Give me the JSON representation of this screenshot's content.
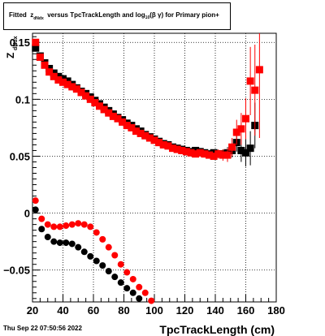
{
  "title": {
    "part1": "Fitted",
    "z": "z",
    "z_sub": "dNdx",
    "part2": "versus TpcTrackLength and log",
    "log_sub": "10",
    "part3": "(β  γ) for Primary pion+"
  },
  "date": "Thu Sep 22 07:50:56 2022",
  "chart_data": {
    "type": "scatter",
    "xlabel": "TpcTrackLength (cm)",
    "ylabel": "Z",
    "ylabel_sub": "dNdx",
    "xlim": [
      20,
      180
    ],
    "ylim": [
      -0.078,
      0.158
    ],
    "xticks": [
      20,
      40,
      60,
      80,
      100,
      120,
      140,
      160,
      180
    ],
    "yticks": [
      -0.05,
      0,
      0.05,
      0.1,
      0.15
    ],
    "ytick_labels": [
      "−0.05",
      "0",
      "0.05",
      "0.1",
      "0.15"
    ],
    "grid": true,
    "series": [
      {
        "color": "#000000",
        "marker": "square",
        "x": [
          22,
          25,
          28,
          31,
          34,
          37,
          40,
          43,
          46,
          49,
          52,
          55,
          58,
          61,
          64,
          67,
          70,
          73,
          76,
          79,
          82,
          85,
          88,
          91,
          94,
          97,
          100,
          103,
          106,
          109,
          112,
          115,
          118,
          121,
          124,
          127,
          130,
          133,
          136,
          139,
          142,
          145,
          148,
          151,
          154,
          157,
          160,
          163,
          166
        ],
        "y": [
          0.145,
          0.138,
          0.132,
          0.127,
          0.123,
          0.12,
          0.118,
          0.116,
          0.113,
          0.11,
          0.107,
          0.105,
          0.102,
          0.099,
          0.096,
          0.093,
          0.09,
          0.087,
          0.084,
          0.082,
          0.079,
          0.077,
          0.074,
          0.072,
          0.069,
          0.067,
          0.065,
          0.063,
          0.061,
          0.06,
          0.058,
          0.057,
          0.056,
          0.055,
          0.054,
          0.055,
          0.054,
          0.053,
          0.052,
          0.053,
          0.052,
          0.052,
          0.053,
          0.055,
          0.062,
          0.055,
          0.053,
          0.057,
          0.077
        ],
        "yerr": [
          0.002,
          0.002,
          0.002,
          0.002,
          0.002,
          0.002,
          0.002,
          0.002,
          0.002,
          0.002,
          0.002,
          0.002,
          0.002,
          0.002,
          0.002,
          0.002,
          0.002,
          0.002,
          0.002,
          0.002,
          0.002,
          0.002,
          0.002,
          0.002,
          0.002,
          0.002,
          0.002,
          0.002,
          0.002,
          0.002,
          0.002,
          0.002,
          0.002,
          0.002,
          0.002,
          0.002,
          0.002,
          0.002,
          0.002,
          0.003,
          0.003,
          0.004,
          0.005,
          0.006,
          0.008,
          0.01,
          0.012,
          0.015,
          0.02
        ]
      },
      {
        "color": "#ff0000",
        "marker": "square",
        "x": [
          22,
          25,
          28,
          31,
          34,
          37,
          40,
          43,
          46,
          49,
          52,
          55,
          58,
          61,
          64,
          67,
          70,
          73,
          76,
          79,
          82,
          85,
          88,
          91,
          94,
          97,
          100,
          103,
          106,
          109,
          112,
          115,
          118,
          121,
          124,
          127,
          130,
          133,
          136,
          139,
          142,
          145,
          148,
          151,
          154,
          157,
          160,
          163,
          166,
          169
        ],
        "y": [
          0.15,
          0.137,
          0.13,
          0.124,
          0.12,
          0.117,
          0.115,
          0.113,
          0.111,
          0.109,
          0.106,
          0.103,
          0.1,
          0.097,
          0.094,
          0.091,
          0.088,
          0.085,
          0.083,
          0.08,
          0.077,
          0.075,
          0.072,
          0.07,
          0.068,
          0.066,
          0.064,
          0.062,
          0.06,
          0.059,
          0.057,
          0.056,
          0.055,
          0.054,
          0.053,
          0.052,
          0.053,
          0.052,
          0.051,
          0.05,
          0.052,
          0.051,
          0.051,
          0.058,
          0.071,
          0.074,
          0.083,
          0.116,
          0.108,
          0.126
        ],
        "yerr": [
          0.002,
          0.002,
          0.002,
          0.002,
          0.002,
          0.002,
          0.002,
          0.002,
          0.002,
          0.002,
          0.002,
          0.002,
          0.002,
          0.002,
          0.002,
          0.002,
          0.002,
          0.002,
          0.002,
          0.002,
          0.002,
          0.002,
          0.002,
          0.002,
          0.002,
          0.002,
          0.002,
          0.002,
          0.002,
          0.002,
          0.002,
          0.002,
          0.002,
          0.002,
          0.002,
          0.002,
          0.002,
          0.002,
          0.002,
          0.003,
          0.004,
          0.005,
          0.006,
          0.008,
          0.011,
          0.014,
          0.018,
          0.03,
          0.04,
          0.06
        ]
      },
      {
        "color": "#000000",
        "marker": "circle",
        "x": [
          22,
          26,
          30,
          34,
          38,
          42,
          46,
          50,
          54,
          58,
          62,
          66,
          70,
          74,
          78,
          82,
          86,
          90
        ],
        "y": [
          0.003,
          -0.014,
          -0.021,
          -0.025,
          -0.026,
          -0.026,
          -0.027,
          -0.03,
          -0.034,
          -0.038,
          -0.042,
          -0.046,
          -0.051,
          -0.056,
          -0.061,
          -0.066,
          -0.07,
          -0.075
        ]
      },
      {
        "color": "#ff0000",
        "marker": "circle",
        "x": [
          22,
          26,
          30,
          34,
          38,
          42,
          46,
          50,
          54,
          58,
          62,
          66,
          70,
          74,
          78,
          82,
          86,
          90,
          94,
          98
        ],
        "y": [
          0.011,
          -0.005,
          -0.01,
          -0.012,
          -0.012,
          -0.011,
          -0.01,
          -0.009,
          -0.01,
          -0.012,
          -0.017,
          -0.023,
          -0.03,
          -0.037,
          -0.045,
          -0.052,
          -0.058,
          -0.065,
          -0.07,
          -0.077
        ]
      }
    ]
  }
}
